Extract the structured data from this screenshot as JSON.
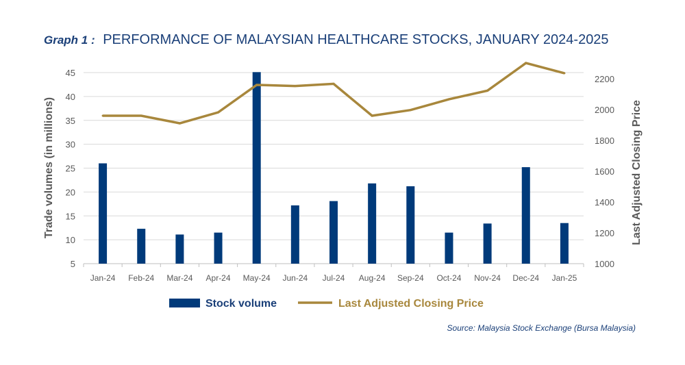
{
  "title": {
    "label": "Graph 1 :",
    "text": "PERFORMANCE OF MALAYSIAN HEALTHCARE STOCKS, JANUARY 2024-2025"
  },
  "source": "Source: Malaysia Stock Exchange (Bursa Malaysia)",
  "chart_data": {
    "type": "bar+line",
    "categories": [
      "Jan-24",
      "Feb-24",
      "Mar-24",
      "Apr-24",
      "May-24",
      "Jun-24",
      "Jul-24",
      "Aug-24",
      "Sep-24",
      "Oct-24",
      "Nov-24",
      "Dec-24",
      "Jan-25"
    ],
    "series": [
      {
        "name": "Stock volume",
        "type": "bar",
        "axis": "left",
        "color": "#003a7a",
        "values": [
          26.0,
          12.3,
          11.1,
          11.5,
          45.1,
          17.2,
          18.1,
          21.8,
          21.2,
          11.5,
          13.4,
          25.2,
          13.5
        ]
      },
      {
        "name": "Last Adjusted Closing Price",
        "type": "line",
        "axis": "right",
        "color": "#a8873c",
        "values": [
          1960,
          1960,
          1911,
          1982,
          2160,
          2153,
          2167,
          1960,
          1997,
          2067,
          2123,
          2302,
          2236
        ]
      }
    ],
    "ylabel": "Trade volumes (in millions)",
    "y2label": "Last Adjusted Closing Price",
    "ylim": [
      5,
      45
    ],
    "yticks": [
      5,
      10,
      15,
      20,
      25,
      30,
      35,
      40,
      45
    ],
    "y2ticks": [
      1000,
      1200,
      1400,
      1600,
      1800,
      2000,
      2200
    ],
    "grid": true,
    "legend": "bottom"
  }
}
